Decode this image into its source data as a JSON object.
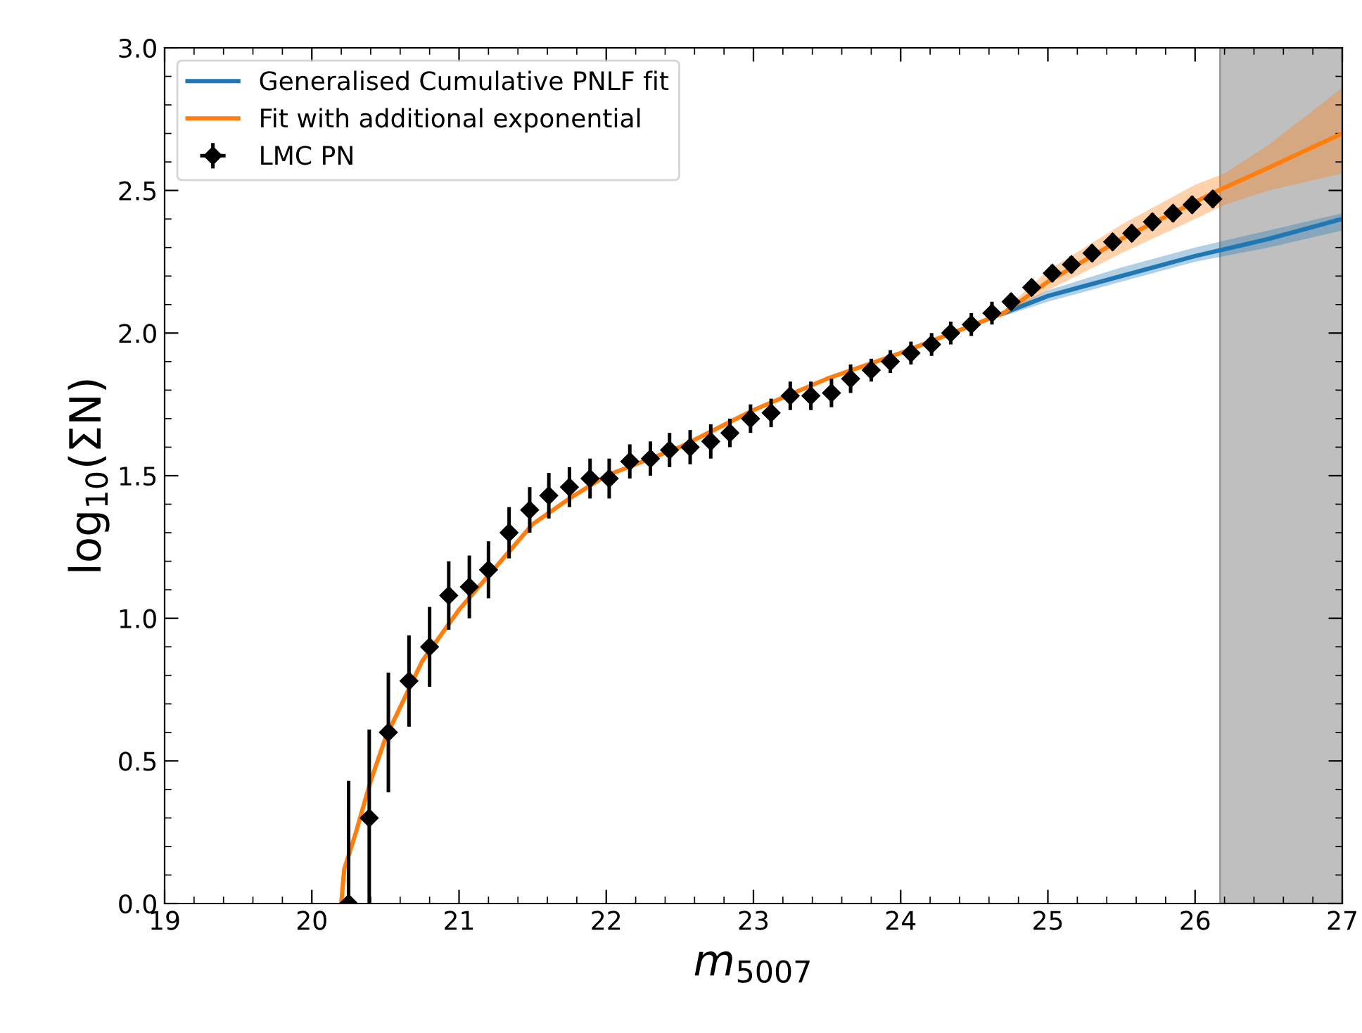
{
  "chart_data": {
    "type": "line",
    "xlabel": "m$_{5007}$",
    "ylabel": "log$_{10}$(ΣN)",
    "xlim": [
      19,
      27
    ],
    "ylim": [
      0,
      3.0
    ],
    "xticks": [
      19,
      20,
      21,
      22,
      23,
      24,
      25,
      26,
      27
    ],
    "yticks": [
      {
        "value": 0,
        "label": "0.0"
      },
      0.5,
      {
        "value": 1,
        "label": "1.0"
      },
      1.5,
      {
        "value": 2,
        "label": "2.0"
      },
      2.5,
      {
        "value": 3,
        "label": "3.0"
      }
    ],
    "grid": false,
    "legend": "top left",
    "bands": [
      {
        "axis": "x",
        "from": 26.17,
        "to": 27,
        "color": "#bfbfbf"
      }
    ],
    "series": [
      {
        "name": "Generalised Cumulative PNLF fit",
        "color": "#1f77b4",
        "x": [
          24.7,
          25,
          25.5,
          26,
          26.5,
          27
        ],
        "values": [
          2.07,
          2.13,
          2.2,
          2.27,
          2.33,
          2.4
        ],
        "lower": [
          2.06,
          2.11,
          2.18,
          2.25,
          2.3,
          2.36
        ],
        "upper": [
          2.08,
          2.15,
          2.23,
          2.3,
          2.36,
          2.42
        ]
      },
      {
        "name": "Fit with additional exponential",
        "color": "#ff7f0e",
        "x": [
          20.2,
          20.22,
          20.3,
          20.4,
          20.5,
          20.75,
          21,
          21.25,
          21.5,
          21.75,
          22,
          22.25,
          22.5,
          23,
          23.5,
          24,
          24.5,
          24.7,
          25,
          25.5,
          26,
          26.2,
          26.5,
          27
        ],
        "values": [
          0,
          0.12,
          0.25,
          0.43,
          0.58,
          0.85,
          1.03,
          1.18,
          1.33,
          1.42,
          1.5,
          1.55,
          1.6,
          1.73,
          1.84,
          1.93,
          2.03,
          2.07,
          2.18,
          2.33,
          2.46,
          2.51,
          2.58,
          2.7
        ],
        "lower": [
          0,
          0.12,
          0.25,
          0.43,
          0.58,
          0.85,
          1.03,
          1.18,
          1.33,
          1.42,
          1.5,
          1.55,
          1.6,
          1.73,
          1.84,
          1.93,
          2.03,
          2.06,
          2.15,
          2.28,
          2.4,
          2.45,
          2.5,
          2.56
        ],
        "upper": [
          0,
          0.12,
          0.25,
          0.43,
          0.58,
          0.85,
          1.03,
          1.18,
          1.33,
          1.42,
          1.5,
          1.55,
          1.6,
          1.73,
          1.84,
          1.93,
          2.03,
          2.08,
          2.22,
          2.38,
          2.52,
          2.56,
          2.66,
          2.86
        ]
      },
      {
        "name": "LMC PN",
        "type": "scatter",
        "color": "#000000",
        "marker": "diamond",
        "x": [
          20.25,
          20.39,
          20.52,
          20.66,
          20.8,
          20.93,
          21.07,
          21.2,
          21.34,
          21.48,
          21.61,
          21.75,
          21.89,
          22.02,
          22.16,
          22.3,
          22.43,
          22.57,
          22.71,
          22.84,
          22.98,
          23.12,
          23.25,
          23.39,
          23.53,
          23.66,
          23.8,
          23.93,
          24.07,
          24.21,
          24.34,
          24.48,
          24.62,
          24.75,
          24.89,
          25.03,
          25.16,
          25.3,
          25.44,
          25.57,
          25.71,
          25.85,
          25.98,
          26.12
        ],
        "values": [
          0,
          0.3,
          0.6,
          0.78,
          0.9,
          1.08,
          1.11,
          1.17,
          1.3,
          1.38,
          1.43,
          1.46,
          1.49,
          1.49,
          1.55,
          1.56,
          1.59,
          1.6,
          1.62,
          1.65,
          1.7,
          1.72,
          1.78,
          1.78,
          1.79,
          1.84,
          1.87,
          1.9,
          1.93,
          1.96,
          2.0,
          2.03,
          2.07,
          2.11,
          2.16,
          2.21,
          2.24,
          2.28,
          2.32,
          2.35,
          2.39,
          2.42,
          2.45,
          2.47
        ],
        "errors": [
          0.43,
          0.31,
          0.21,
          0.16,
          0.14,
          0.12,
          0.11,
          0.1,
          0.09,
          0.08,
          0.08,
          0.07,
          0.07,
          0.07,
          0.06,
          0.06,
          0.06,
          0.06,
          0.06,
          0.05,
          0.05,
          0.05,
          0.05,
          0.05,
          0.05,
          0.05,
          0.04,
          0.04,
          0.04,
          0.04,
          0.04,
          0.04,
          0.04,
          0.03,
          0.03,
          0.03,
          0.03,
          0.03,
          0.03,
          0.03,
          0.03,
          0.03,
          0.03,
          0.03
        ],
        "xerrors": [
          0.05,
          0.05,
          0.05,
          0.05,
          0.05,
          0.05,
          0.05,
          0.05,
          0.05,
          0.05,
          0.05,
          0.05,
          0.05,
          0.05,
          0.05,
          0.05,
          0.05,
          0.05,
          0.05,
          0.05,
          0.05,
          0.05,
          0.05,
          0.05,
          0.05,
          0.05,
          0.05,
          0.05,
          0.05,
          0.05,
          0.05,
          0.05,
          0.05,
          0.05,
          0.05,
          0.05,
          0.05,
          0.05,
          0.05,
          0.05,
          0.05,
          0.05,
          0.05,
          0.05
        ]
      }
    ]
  }
}
